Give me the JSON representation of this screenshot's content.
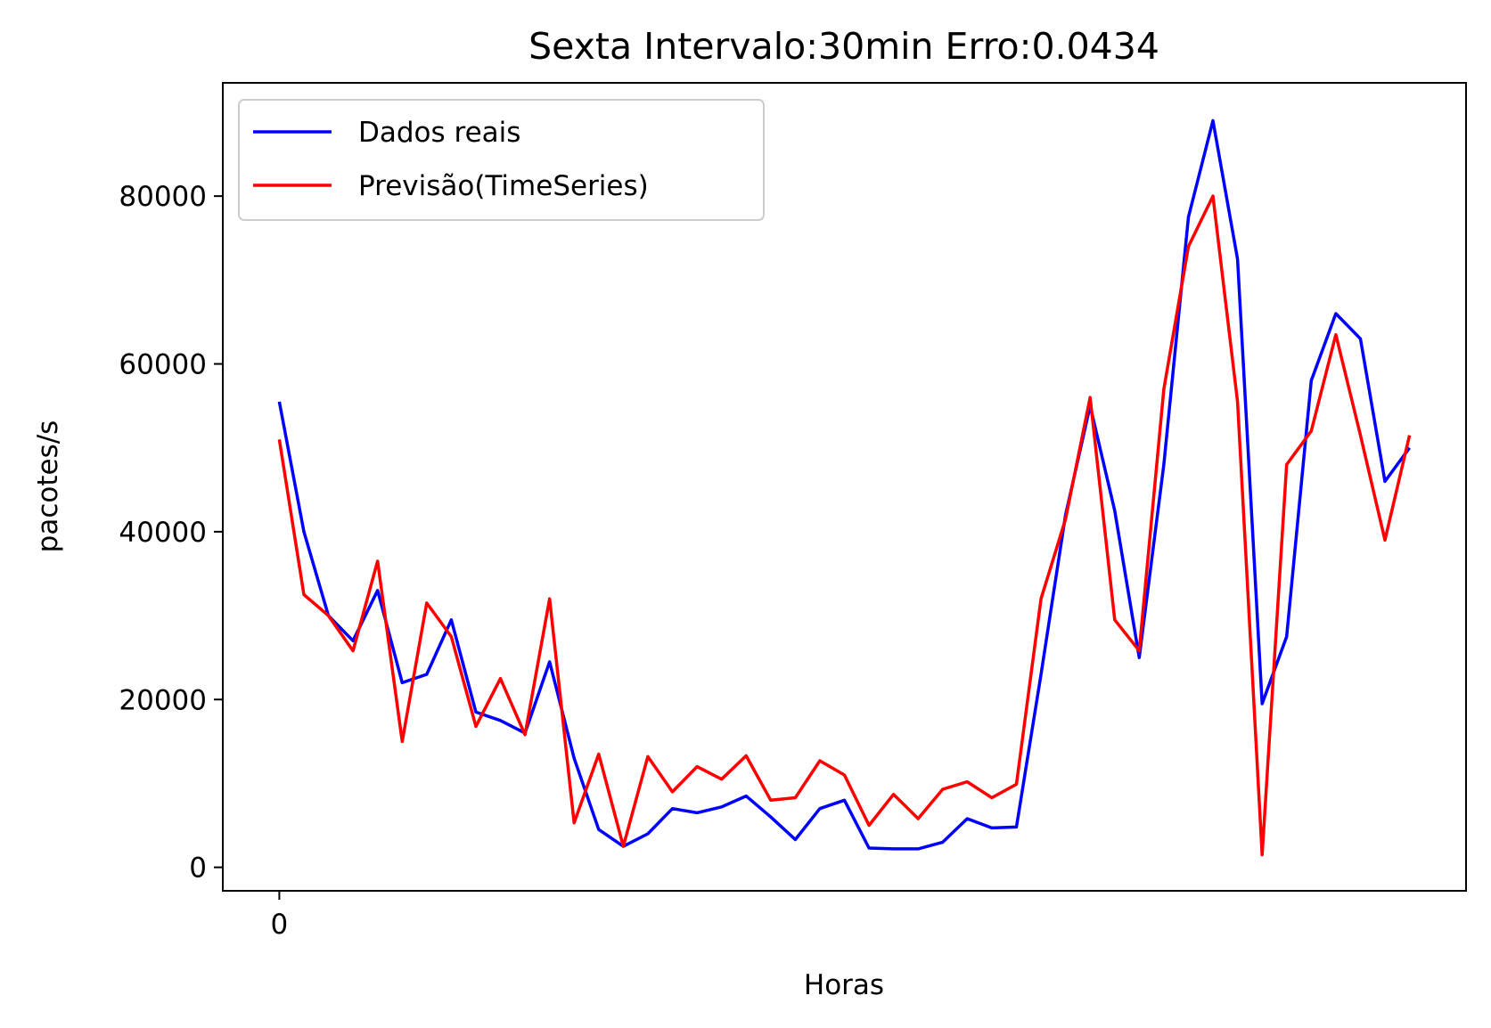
{
  "chart_data": {
    "type": "line",
    "title": "Sexta Intervalo:30min Erro:0.0434",
    "xlabel": "Horas",
    "ylabel": "pacotes/s",
    "x_ticks": [
      "0"
    ],
    "y_ticks": [
      "0",
      "20000",
      "40000",
      "60000",
      "80000"
    ],
    "y_tick_values": [
      0,
      20000,
      40000,
      60000,
      80000
    ],
    "xlim": [
      -2.3,
      48.3
    ],
    "ylim": [
      -2800,
      93500
    ],
    "grid": false,
    "legend_position": "upper-left",
    "x": [
      0,
      1,
      2,
      3,
      4,
      5,
      6,
      7,
      8,
      9,
      10,
      11,
      12,
      13,
      14,
      15,
      16,
      17,
      18,
      19,
      20,
      21,
      22,
      23,
      24,
      25,
      26,
      27,
      28,
      29,
      30,
      31,
      32,
      33,
      34,
      35,
      36,
      37,
      38,
      39,
      40,
      41,
      42,
      43,
      44,
      45,
      46
    ],
    "series": [
      {
        "name": "Dados reais",
        "color": "#0000ff",
        "values": [
          55500,
          40000,
          30000,
          27000,
          33000,
          22000,
          23000,
          29500,
          18500,
          17500,
          16000,
          24500,
          13000,
          4500,
          2500,
          4000,
          7000,
          6500,
          7200,
          8500,
          6000,
          3300,
          7000,
          8000,
          2300,
          2200,
          2200,
          3000,
          5800,
          4700,
          4800,
          23000,
          42000,
          55000,
          42500,
          25000,
          48000,
          77500,
          89000,
          72500,
          19500,
          27500,
          58000,
          66000,
          63000,
          46000,
          50000
        ]
      },
      {
        "name": "Previsão(TimeSeries)",
        "color": "#ff0000",
        "values": [
          51000,
          32500,
          30000,
          25800,
          36500,
          15000,
          31500,
          27500,
          16800,
          22500,
          15800,
          32000,
          5300,
          13500,
          2500,
          13200,
          9000,
          12000,
          10500,
          13300,
          8000,
          8300,
          12700,
          11000,
          5000,
          8700,
          5800,
          9300,
          10200,
          8300,
          9900,
          32000,
          41500,
          56000,
          29500,
          25800,
          57000,
          74000,
          80000,
          55500,
          1500,
          48000,
          52000,
          63500,
          51500,
          39000,
          51500
        ]
      }
    ]
  }
}
